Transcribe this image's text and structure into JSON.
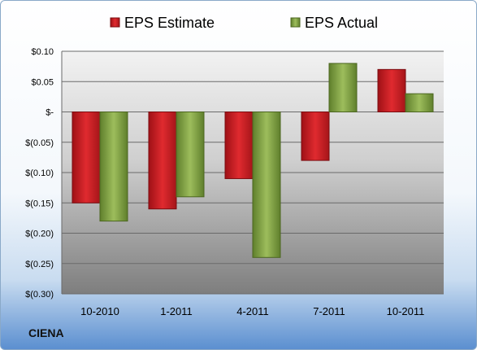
{
  "brand_text": "CIENA",
  "chart_data": {
    "type": "bar",
    "title": "",
    "xlabel": "",
    "ylabel": "",
    "categories": [
      "10-2010",
      "1-2011",
      "4-2011",
      "7-2011",
      "10-2011"
    ],
    "series": [
      {
        "name": "EPS Estimate",
        "values": [
          -0.15,
          -0.16,
          -0.11,
          -0.08,
          0.07
        ],
        "color": "#cc1f24"
      },
      {
        "name": "EPS Actual",
        "values": [
          -0.18,
          -0.14,
          -0.24,
          0.08,
          0.03
        ],
        "color": "#86a84a"
      }
    ],
    "ylim": [
      -0.3,
      0.1
    ],
    "yticks": [
      0.1,
      0.05,
      0,
      -0.05,
      -0.1,
      -0.15,
      -0.2,
      -0.25,
      -0.3
    ],
    "ytick_labels": [
      "$0.10",
      "$0.05",
      "$-",
      "$(0.05)",
      "$(0.10)",
      "$(0.15)",
      "$(0.20)",
      "$(0.25)",
      "$(0.30)"
    ],
    "grid": true,
    "legend_position": "top"
  }
}
